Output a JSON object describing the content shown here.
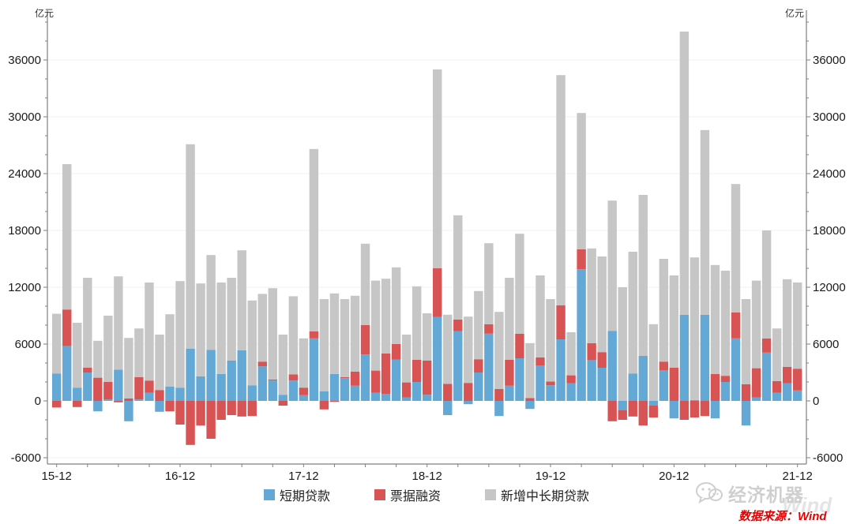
{
  "units": {
    "left": "亿元",
    "right": "亿元"
  },
  "legend": {
    "items": [
      {
        "label": "短期贷款",
        "color": "#64A8D5"
      },
      {
        "label": "票据融资",
        "color": "#D85454"
      },
      {
        "label": "新增中长期贷款",
        "color": "#C6C6C6"
      }
    ]
  },
  "watermark": {
    "brand": "经济机器",
    "wind": "Wind"
  },
  "source": {
    "text": "数据来源：Wind"
  },
  "chart_data": {
    "type": "bar",
    "stacked": true,
    "title": "",
    "xlabel": "",
    "ylabel": "亿元",
    "ylim": [
      -6700,
      41200
    ],
    "ytick_major_step": 6000,
    "ytick_minor_step": 2000,
    "ytick_labels": [
      -6000,
      0,
      6000,
      12000,
      18000,
      24000,
      30000,
      36000
    ],
    "grid_values": [
      -6000,
      6000,
      12000,
      18000,
      24000,
      30000,
      36000
    ],
    "x_label_every": 12,
    "x_tick_every": 3,
    "legend_position": "bottom",
    "categories": [
      "15-12",
      "16-01",
      "16-02",
      "16-03",
      "16-04",
      "16-05",
      "16-06",
      "16-07",
      "16-08",
      "16-09",
      "16-10",
      "16-11",
      "16-12",
      "17-01",
      "17-02",
      "17-03",
      "17-04",
      "17-05",
      "17-06",
      "17-07",
      "17-08",
      "17-09",
      "17-10",
      "17-11",
      "17-12",
      "18-01",
      "18-02",
      "18-03",
      "18-04",
      "18-05",
      "18-06",
      "18-07",
      "18-08",
      "18-09",
      "18-10",
      "18-11",
      "18-12",
      "19-01",
      "19-02",
      "19-03",
      "19-04",
      "19-05",
      "19-06",
      "19-07",
      "19-08",
      "19-09",
      "19-10",
      "19-11",
      "19-12",
      "20-01",
      "20-02",
      "20-03",
      "20-04",
      "20-05",
      "20-06",
      "20-07",
      "20-08",
      "20-09",
      "20-10",
      "20-11",
      "20-12",
      "21-01",
      "21-02",
      "21-03",
      "21-04",
      "21-05",
      "21-06",
      "21-07",
      "21-08",
      "21-09",
      "21-10",
      "21-11",
      "21-12"
    ],
    "series": [
      {
        "name": "短期贷款",
        "color": "#64A8D5",
        "values": [
          2900,
          5800,
          1400,
          3000,
          -1100,
          150,
          3300,
          -2150,
          150,
          850,
          -1150,
          1500,
          1400,
          5500,
          2600,
          5400,
          2850,
          4250,
          5350,
          1650,
          3650,
          2150,
          650,
          2150,
          600,
          6600,
          1000,
          2850,
          2400,
          1600,
          4900,
          850,
          750,
          4350,
          350,
          2000,
          650,
          8850,
          -1500,
          7350,
          -350,
          3000,
          7100,
          -1600,
          1600,
          4500,
          -850,
          3750,
          1650,
          6500,
          1850,
          13900,
          4300,
          3500,
          7400,
          -1000,
          2900,
          4750,
          -500,
          3250,
          -1850,
          9100,
          100,
          9100,
          -1850,
          2000,
          6600,
          -2600,
          350,
          5100,
          850,
          1850,
          1100
        ]
      },
      {
        "name": "票据融资",
        "color": "#D85454",
        "values": [
          -700,
          3850,
          -650,
          500,
          2450,
          1850,
          -150,
          250,
          2350,
          1300,
          1150,
          -1100,
          -2500,
          -4650,
          -2600,
          -4000,
          -2000,
          -1500,
          -1650,
          -1600,
          500,
          100,
          -500,
          650,
          800,
          750,
          -900,
          -100,
          100,
          1500,
          3100,
          2350,
          4250,
          1650,
          1600,
          2350,
          3600,
          5150,
          1800,
          1250,
          1900,
          1400,
          1000,
          1250,
          2750,
          2600,
          300,
          850,
          400,
          3600,
          850,
          2100,
          1800,
          1650,
          -2150,
          -1000,
          -1650,
          -2600,
          -1250,
          900,
          3500,
          -2000,
          -1750,
          -1600,
          2850,
          650,
          2750,
          1750,
          3100,
          1500,
          1250,
          1750,
          2300
        ]
      },
      {
        "name": "新增中长期贷款",
        "color": "#C6C6C6",
        "values": [
          6300,
          15350,
          6850,
          9500,
          3900,
          7000,
          9850,
          6400,
          5150,
          10350,
          5850,
          7650,
          11250,
          21600,
          9800,
          10000,
          9650,
          8750,
          10550,
          8950,
          7150,
          9650,
          6350,
          8250,
          5200,
          19250,
          9750,
          8500,
          8250,
          8000,
          8600,
          9500,
          7900,
          8100,
          5050,
          7750,
          5000,
          21000,
          7300,
          11000,
          7000,
          7200,
          8550,
          8150,
          8650,
          10550,
          5800,
          8650,
          8700,
          24300,
          4550,
          14400,
          10000,
          10100,
          13750,
          12000,
          12850,
          17000,
          8100,
          10850,
          9750,
          29900,
          15050,
          19500,
          11500,
          11100,
          13550,
          9000,
          9250,
          11400,
          5550,
          9250,
          9100
        ]
      }
    ]
  }
}
